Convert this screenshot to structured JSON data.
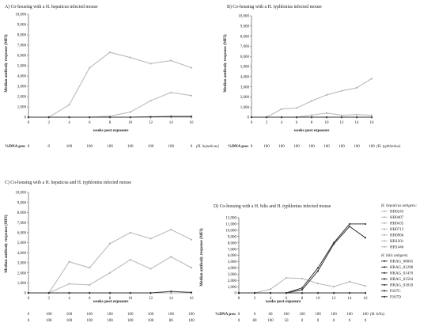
{
  "colors": {
    "hhep": "#b5b5b5",
    "hbilis": "#333333"
  },
  "legend": {
    "groups": [
      {
        "title": "H. hepaticus antigens:",
        "color_key": "hhep",
        "items": [
          "HH0243",
          "HH0407",
          "HH0435",
          "HH0713",
          "HH0966",
          "HH1201",
          "HH1446"
        ]
      },
      {
        "title": "H. bilis antigens:",
        "color_key": "hbilis",
        "items": [
          "HRAG_00845",
          "HRAG_01298",
          "HRAG_01470",
          "HRAG_01504",
          "HRAG_01818",
          "P167C",
          "P167D"
        ]
      }
    ]
  },
  "chart_data": [
    {
      "type": "line",
      "title": "A) Co-housing with a H. hepaticus infected mouse",
      "xlabel": "weeks post exposure",
      "ylabel": "Median antibody response (MFI)",
      "x": [
        0,
        2,
        4,
        6,
        8,
        10,
        12,
        14,
        16
      ],
      "ylim": [
        0,
        10000
      ],
      "ytick_step": 1000,
      "series": [
        {
          "name": "HH0243",
          "group": "hhep",
          "values": [
            0,
            0,
            1200,
            4800,
            6300,
            5800,
            5200,
            5500,
            4800
          ]
        },
        {
          "name": "HH0407",
          "group": "hhep",
          "values": [
            0,
            0,
            0,
            0,
            100,
            500,
            1600,
            2400,
            2100
          ]
        },
        {
          "name": "HH0435",
          "group": "hhep",
          "values": [
            0,
            0,
            0,
            0,
            0,
            0,
            50,
            100,
            100
          ]
        },
        {
          "name": "HH0713",
          "group": "hhep",
          "values": [
            0,
            0,
            0,
            0,
            0,
            0,
            0,
            0,
            0
          ]
        },
        {
          "name": "HRAG_00845",
          "group": "hbilis",
          "values": [
            0,
            0,
            0,
            0,
            0,
            0,
            30,
            60,
            60
          ]
        }
      ],
      "pcr_rows": [
        {
          "label": "%DNA pos:",
          "values": [
            "0",
            "0",
            "100",
            "100",
            "100",
            "100",
            "100",
            "100",
            "0"
          ],
          "suffix": "(H. hepaticus)"
        }
      ]
    },
    {
      "type": "line",
      "title": "B) Co-housing with a H. typhlonius infected mouse",
      "xlabel": "weeks post exposure",
      "ylabel": "Median antibody response (MFI)",
      "x": [
        0,
        2,
        4,
        6,
        8,
        10,
        12,
        14,
        16
      ],
      "ylim": [
        0,
        10000
      ],
      "ytick_step": 1000,
      "series": [
        {
          "name": "HH0243",
          "group": "hhep",
          "values": [
            0,
            0,
            800,
            900,
            1600,
            2200,
            2600,
            2900,
            3800
          ]
        },
        {
          "name": "HH0407",
          "group": "hhep",
          "values": [
            0,
            0,
            0,
            0,
            200,
            400,
            200,
            250,
            200
          ]
        },
        {
          "name": "HH0435",
          "group": "hhep",
          "values": [
            0,
            0,
            0,
            0,
            0,
            0,
            0,
            0,
            0
          ]
        },
        {
          "name": "HRAG_00845",
          "group": "hbilis",
          "values": [
            0,
            0,
            0,
            0,
            0,
            0,
            0,
            0,
            0
          ]
        }
      ],
      "pcr_rows": [
        {
          "label": "%DNA pos:",
          "values": [
            "0",
            "100",
            "100",
            "100",
            "100",
            "100",
            "100",
            "100",
            "100"
          ],
          "suffix": "(H. typhlonius)"
        }
      ]
    },
    {
      "type": "line",
      "title": "C) Co-housing with a H. hepaticus and H. typhlonius infected mouse",
      "xlabel": "weeks post exposure",
      "ylabel": "Median antibody response (MFI)",
      "x": [
        0,
        2,
        4,
        6,
        8,
        10,
        12,
        14,
        16
      ],
      "ylim": [
        0,
        10000
      ],
      "ytick_step": 1000,
      "series": [
        {
          "name": "HH0243",
          "group": "hhep",
          "values": [
            0,
            0,
            3100,
            2500,
            4900,
            6000,
            5400,
            6300,
            5300
          ]
        },
        {
          "name": "HH0407",
          "group": "hhep",
          "values": [
            0,
            0,
            900,
            800,
            2000,
            3300,
            2400,
            3600,
            2500
          ]
        },
        {
          "name": "HH0435",
          "group": "hhep",
          "values": [
            0,
            0,
            0,
            0,
            0,
            0,
            0,
            0,
            0
          ]
        },
        {
          "name": "HRAG_00845",
          "group": "hbilis",
          "values": [
            0,
            0,
            0,
            0,
            0,
            0,
            0,
            150,
            50
          ]
        }
      ],
      "pcr_rows": [
        {
          "label": "",
          "values": [
            "0",
            "100",
            "100",
            "100",
            "100",
            "100",
            "100",
            "100",
            "100"
          ],
          "suffix": ""
        },
        {
          "label": "",
          "values": [
            "0",
            "100",
            "100",
            "100",
            "100",
            "100",
            "100",
            "80",
            "100"
          ],
          "suffix": ""
        }
      ]
    },
    {
      "type": "line",
      "title": "D) Co-housing with a H. bilis and H. typhlonius infected mouse",
      "xlabel": "weeks post exposure",
      "ylabel": "Median antibody response (MFI)",
      "x": [
        0,
        2,
        4,
        6,
        8,
        10,
        12,
        14,
        16
      ],
      "ylim": [
        0,
        12000
      ],
      "ytick_step": 1000,
      "series": [
        {
          "name": "HH0243",
          "group": "hhep",
          "values": [
            0,
            0,
            600,
            2400,
            2300,
            1500,
            1000,
            1800,
            1100
          ]
        },
        {
          "name": "HH0407",
          "group": "hhep",
          "values": [
            0,
            0,
            0,
            0,
            0,
            0,
            0,
            0,
            0
          ]
        },
        {
          "name": "HRAG_00845",
          "group": "hbilis",
          "values": [
            0,
            0,
            0,
            0,
            800,
            4000,
            8000,
            11000,
            11000
          ]
        },
        {
          "name": "HRAG_01298",
          "group": "hbilis",
          "values": [
            0,
            0,
            0,
            0,
            500,
            3500,
            7800,
            10600,
            8800
          ]
        },
        {
          "name": "HRAG_01470",
          "group": "hbilis",
          "values": [
            0,
            0,
            0,
            0,
            0,
            0,
            0,
            0,
            0
          ]
        }
      ],
      "pcr_rows": [
        {
          "label": "%DNA pos:",
          "values": [
            "0",
            "0",
            "60",
            "100",
            "100",
            "100",
            "100",
            "100",
            "100"
          ],
          "suffix": "(H. bilis)"
        },
        {
          "label": "",
          "values": [
            "0",
            "80",
            "100",
            "50",
            "0",
            "0",
            "0",
            "0",
            "0"
          ],
          "suffix": ""
        }
      ]
    }
  ]
}
